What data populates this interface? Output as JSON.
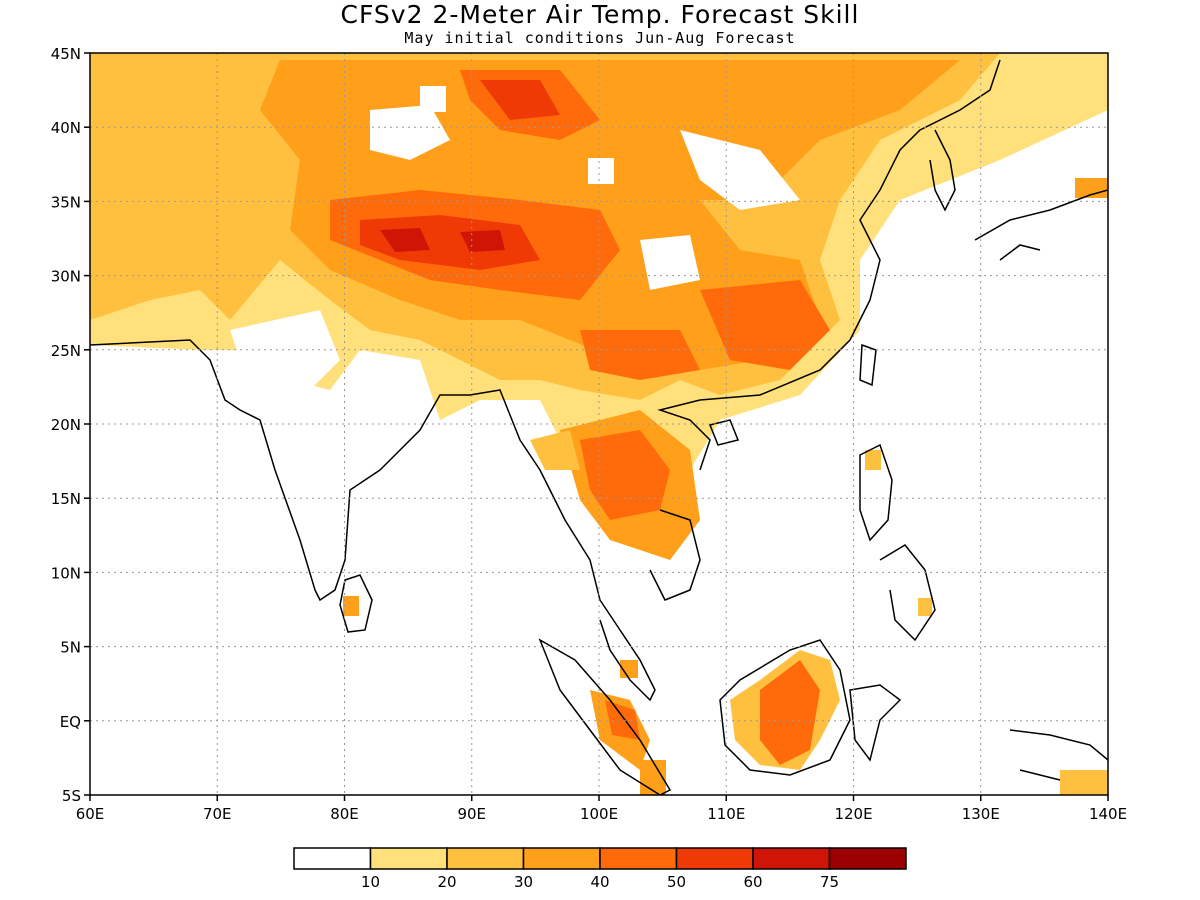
{
  "title": "CFSv2 2-Meter Air Temp. Forecast Skill",
  "subtitle": "May initial conditions  Jun-Aug Forecast",
  "map": {
    "lon_range": [
      60,
      140
    ],
    "lat_range": [
      -5,
      45
    ],
    "lat_labels": [
      "45N",
      "40N",
      "35N",
      "30N",
      "25N",
      "20N",
      "15N",
      "10N",
      "5N",
      "EQ",
      "5S"
    ],
    "lon_labels": [
      "60E",
      "70E",
      "80E",
      "90E",
      "100E",
      "110E",
      "120E",
      "130E",
      "140E"
    ],
    "grid": "dotted gray every 10° longitude and 5° latitude"
  },
  "legend": {
    "labels": [
      "10",
      "20",
      "30",
      "40",
      "50",
      "60",
      "75"
    ],
    "colors": [
      "#ffffff",
      "#ffe07a",
      "#ffbf3f",
      "#ff9f1a",
      "#ff6a0a",
      "#f03a06",
      "#cf1505",
      "#9c0000"
    ]
  }
}
